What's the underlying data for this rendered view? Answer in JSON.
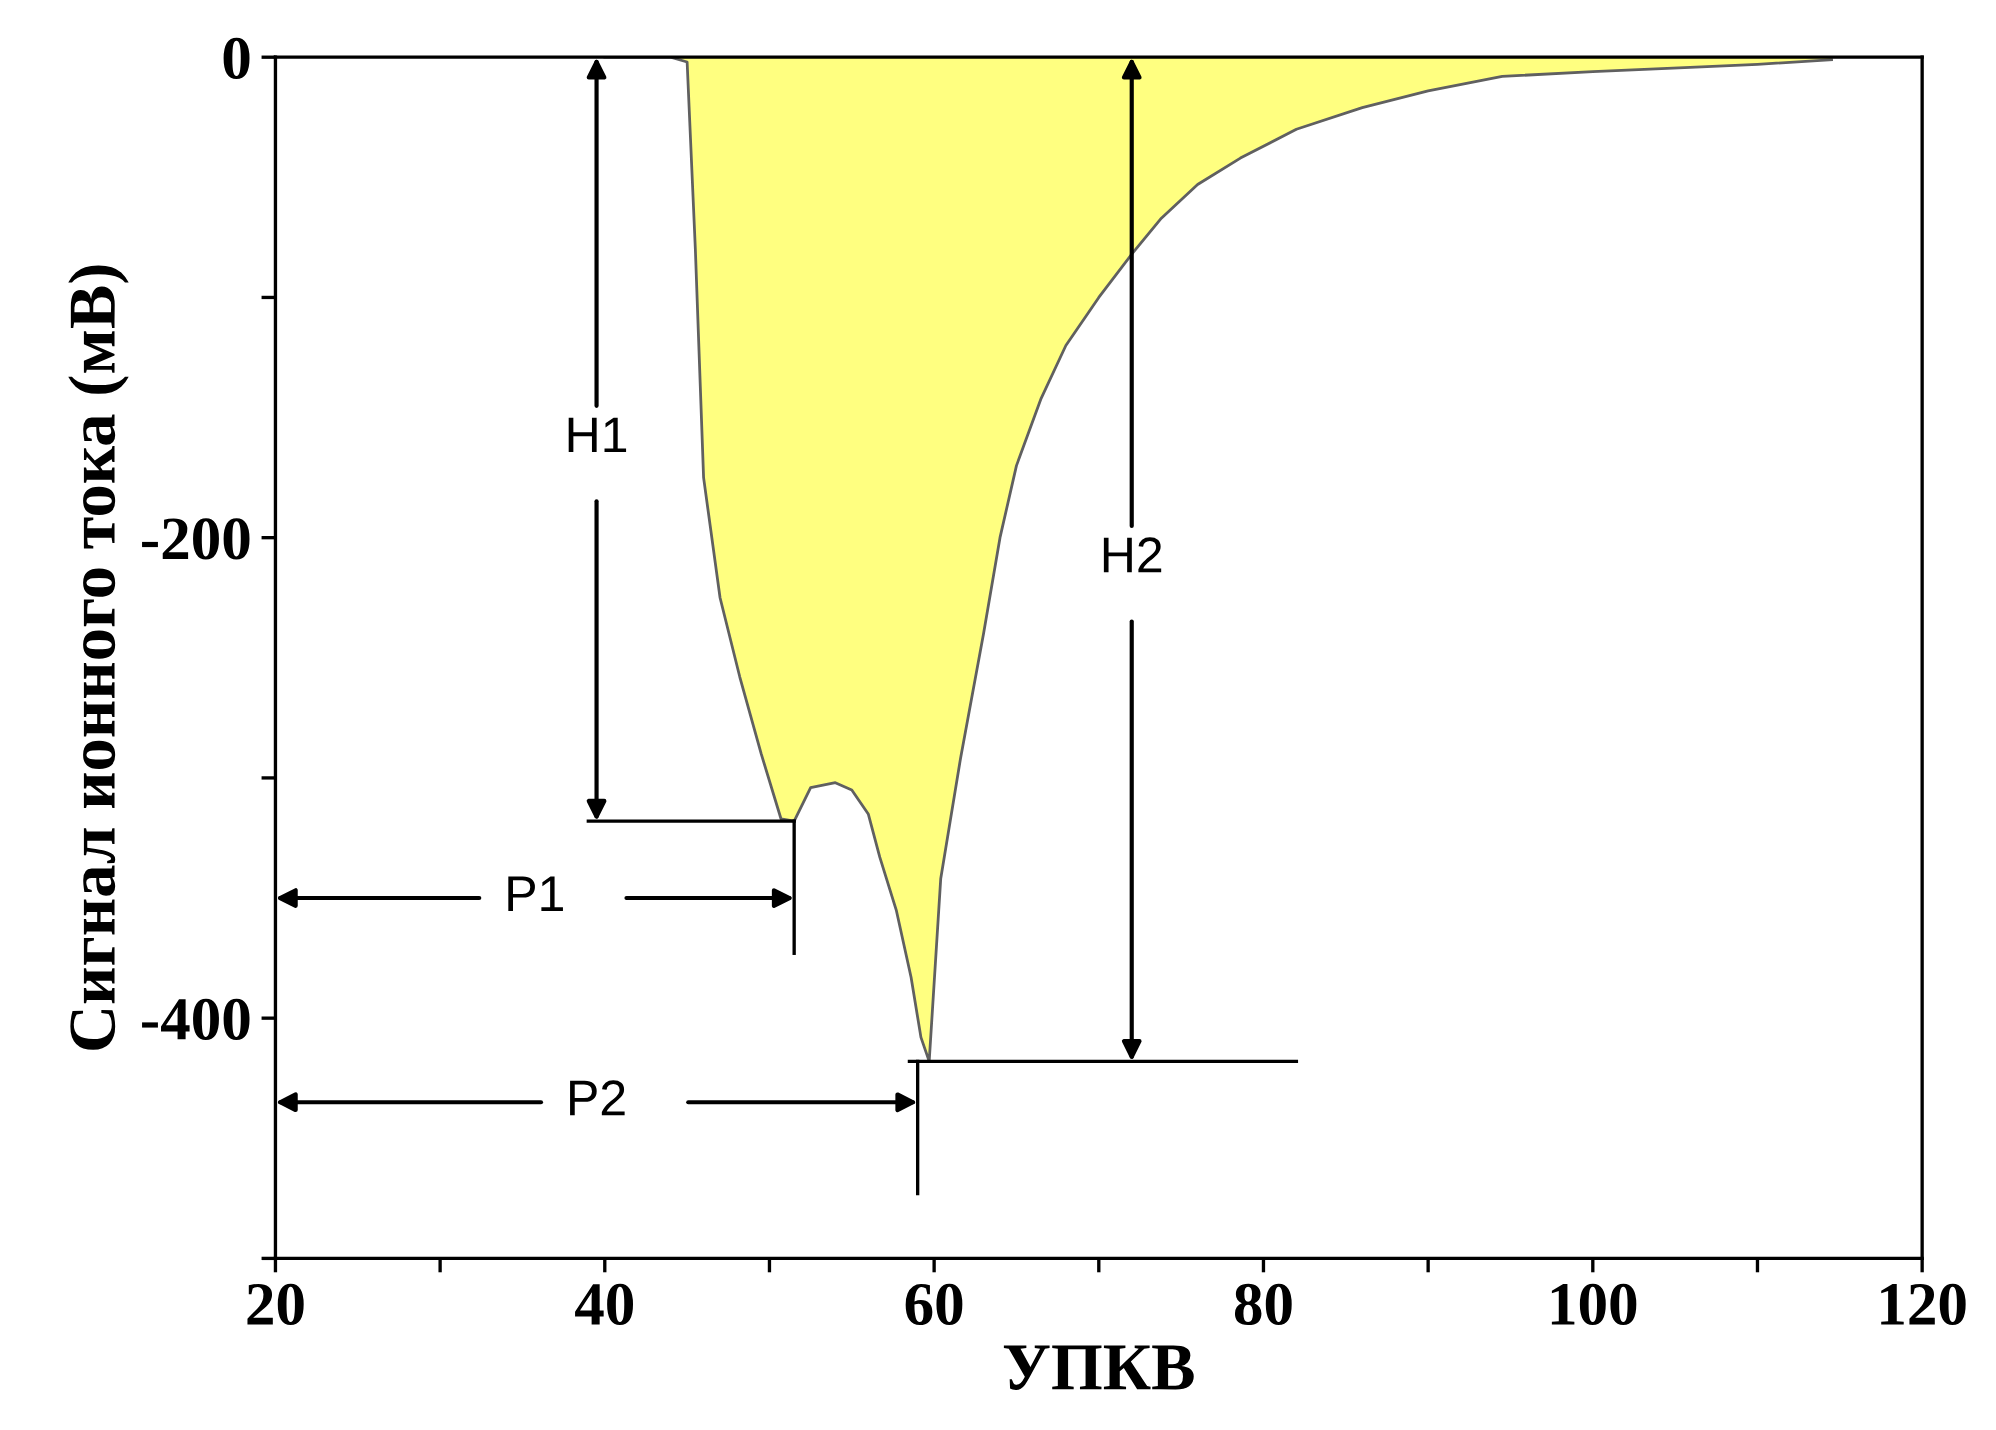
{
  "chart_data": {
    "type": "area",
    "xlabel": "УПКВ",
    "ylabel": "Сигнал ионного тока (мВ)",
    "x": [
      40,
      44,
      45,
      45.5,
      46,
      47,
      48.2,
      49.5,
      50.7,
      51.5,
      52.5,
      54,
      55,
      56,
      56.7,
      57.7,
      58.6,
      59.2,
      59.7,
      60.4,
      61.6,
      63,
      64,
      65,
      66.5,
      68,
      70,
      72,
      73.8,
      76,
      78.6,
      82,
      86,
      90,
      94.5,
      100,
      106.6,
      110,
      114.5
    ],
    "series": [
      {
        "color": "#ffff80",
        "values": [
          0,
          0,
          -2,
          -80,
          -175,
          -225,
          -258,
          -290,
          -317,
          -318,
          -304,
          -302,
          -305,
          -315,
          -333,
          -355,
          -383,
          -408,
          -418,
          -342,
          -292,
          -240,
          -200,
          -170,
          -142,
          -120,
          -100,
          -82,
          -67,
          -53,
          -42,
          -30,
          -21,
          -14,
          -8,
          -6,
          -4,
          -3,
          -1
        ]
      }
    ],
    "xlim": [
      20,
      120
    ],
    "ylim": [
      -500,
      0
    ],
    "xticks": [
      20,
      {
        "value": 30,
        "label": null
      },
      40,
      {
        "value": 50,
        "label": null
      },
      60,
      {
        "value": 70,
        "label": null
      },
      80,
      {
        "value": 90,
        "label": null
      },
      100,
      {
        "value": 110,
        "label": null
      },
      120
    ],
    "yticks": [
      0,
      {
        "value": -100,
        "label": null
      },
      -200,
      {
        "value": -300,
        "label": null
      },
      -400,
      {
        "value": -500,
        "label": null
      }
    ],
    "ref_lines": [
      {
        "axis": "y",
        "value": -318,
        "color": "#000000"
      },
      {
        "axis": "y",
        "value": -418,
        "color": "#000000"
      },
      {
        "axis": "x",
        "value": 51.5,
        "color": "#000000"
      },
      {
        "axis": "x",
        "value": 59,
        "color": "#000000"
      }
    ],
    "annotations": [
      {
        "text": "H1",
        "x": 39.5,
        "y": -318
      },
      {
        "text": "H2",
        "x": 72,
        "y": -418
      },
      {
        "text": "P1",
        "x": 51.5,
        "y": -350
      },
      {
        "text": "P2",
        "x": 59,
        "y": -435
      }
    ]
  }
}
